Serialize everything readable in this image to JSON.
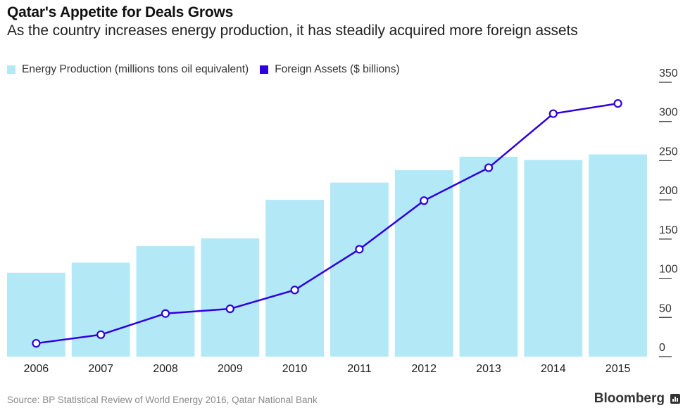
{
  "header": {
    "title": "Qatar's Appetite for Deals Grows",
    "subtitle": "As the country increases energy production, it has steadily acquired more foreign assets"
  },
  "footer": {
    "source": "Source: BP Statistical Review of World Energy 2016, Qatar National Bank",
    "brand": "Bloomberg"
  },
  "colors": {
    "bar": "#b3e9f6",
    "line": "#2e00e0",
    "marker_fill": "#ffffff",
    "tick": "#333333"
  },
  "chart_data": {
    "type": "bar+line",
    "title": "Qatar's Appetite for Deals Grows",
    "subtitle": "As the country increases energy production, it has steadily acquired more foreign assets",
    "categories": [
      "2006",
      "2007",
      "2008",
      "2009",
      "2010",
      "2011",
      "2012",
      "2013",
      "2014",
      "2015"
    ],
    "series": [
      {
        "name": "Energy Production (millions tons oil equivalent)",
        "type": "bar",
        "color": "#b3e9f6",
        "values": [
          107,
          120,
          141,
          151,
          200,
          222,
          238,
          255,
          251,
          258
        ]
      },
      {
        "name": "Foreign Assets ($ billions)",
        "type": "line",
        "color": "#2e00e0",
        "values": [
          17,
          28,
          55,
          61,
          85,
          137,
          199,
          241,
          310,
          323
        ]
      }
    ],
    "yaxis": {
      "position": "right",
      "ylim": [
        0,
        350
      ],
      "ticks": [
        0,
        50,
        100,
        150,
        200,
        250,
        300,
        350
      ]
    },
    "xlabel": "",
    "ylabel": "",
    "grid": false,
    "legend_position": "top-left"
  }
}
